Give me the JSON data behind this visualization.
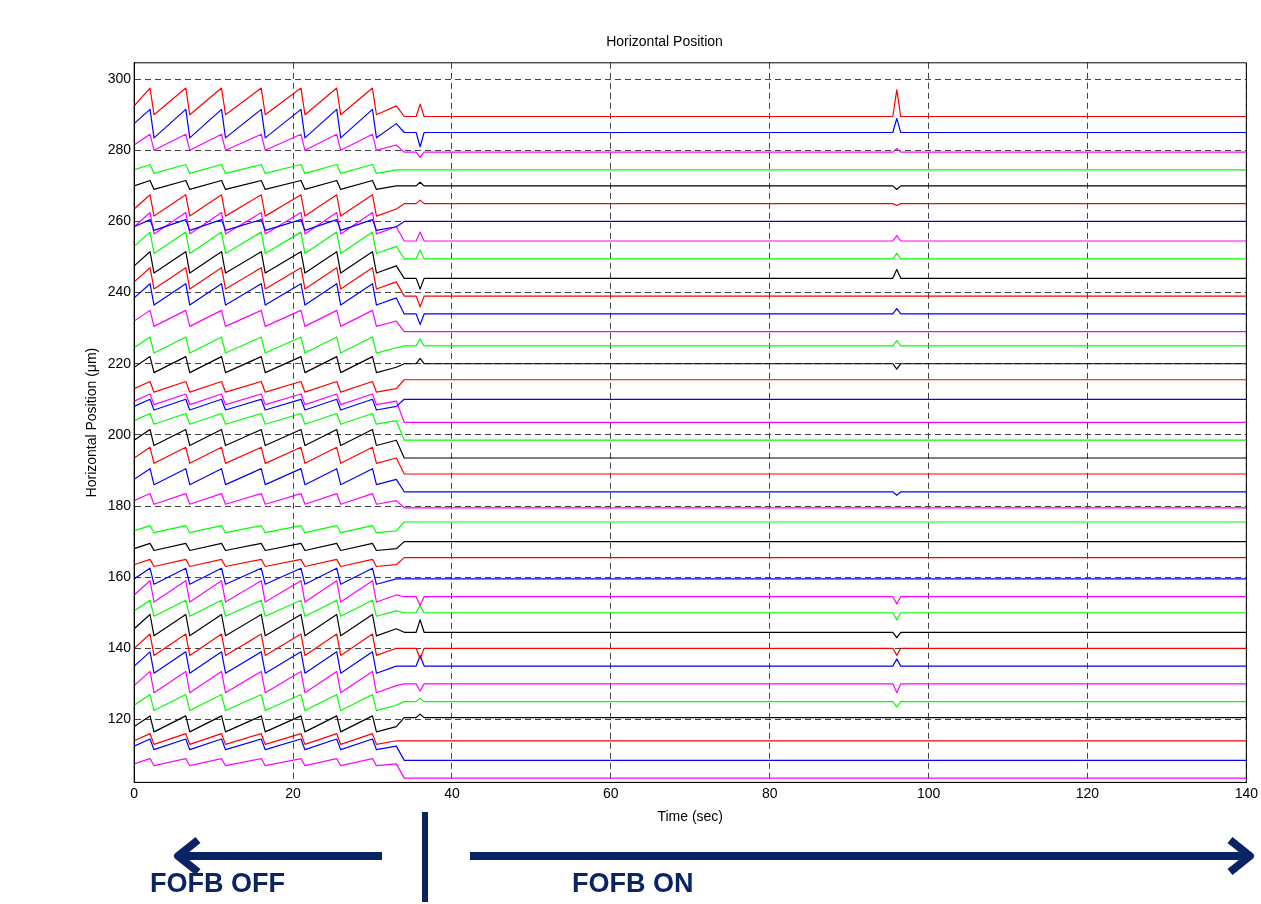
{
  "chart_data": {
    "type": "line",
    "title": "Horizontal Position",
    "xlabel": "Time (sec)",
    "ylabel": "Horizontal Position (μm)",
    "x": [
      0,
      2,
      2.5,
      6.5,
      7,
      11,
      11.5,
      16,
      16.5,
      21,
      21.5,
      25.5,
      26,
      30,
      30.5,
      33,
      34,
      35.5,
      36,
      36.5,
      60,
      95.5,
      96,
      96.5,
      140
    ],
    "xlim": [
      0,
      140
    ],
    "xticks": [
      0,
      20,
      40,
      60,
      80,
      100,
      120,
      140
    ],
    "ylim": [
      102.3,
      304.6
    ],
    "yticks": [
      120,
      140,
      160,
      180,
      200,
      220,
      240,
      260,
      280,
      300
    ],
    "grid": true,
    "legend": false,
    "marker": "none",
    "line_style": "solid",
    "annotations": [
      "FOFB OFF",
      "FOFB ON"
    ],
    "series": [
      {
        "color": "#ff0000",
        "values": [
          292.5,
          297.5,
          290,
          297.5,
          290,
          297.5,
          290,
          297.5,
          290,
          297.5,
          290,
          297.5,
          290,
          297.5,
          290,
          292.5,
          289.5,
          289.5,
          293,
          289.5,
          289.5,
          289.5,
          297,
          289.5,
          289.5
        ]
      },
      {
        "color": "#0000ff",
        "values": [
          287.5,
          291.5,
          283.5,
          291.5,
          283.5,
          291.5,
          283.5,
          291.5,
          283.5,
          291.5,
          283.5,
          291.5,
          283.5,
          291.5,
          283.5,
          287.5,
          285,
          285,
          281,
          285,
          285,
          285,
          289,
          285,
          285
        ]
      },
      {
        "color": "#ff00ff",
        "values": [
          281.5,
          284.5,
          280,
          284.5,
          280,
          284.5,
          280,
          284.5,
          280,
          284.5,
          280,
          284.5,
          280,
          284.5,
          280,
          281.5,
          279.5,
          279.5,
          278,
          279.5,
          279.5,
          279.5,
          280.5,
          279.5,
          279.5
        ]
      },
      {
        "color": "#00ff00",
        "values": [
          274.5,
          276,
          273.5,
          276,
          273.5,
          276,
          273.5,
          276,
          273.5,
          276,
          273.5,
          276,
          273.5,
          276,
          273.5,
          274.5,
          274.5,
          274.5,
          274.5,
          274.5,
          274.5,
          274.5,
          274.5,
          274.5,
          274.5
        ]
      },
      {
        "color": "#000000",
        "values": [
          270,
          271.5,
          269,
          271.5,
          269,
          271.5,
          269,
          271.5,
          269,
          271.5,
          269,
          271.5,
          269,
          271.5,
          269,
          270,
          270,
          270,
          271,
          270,
          270,
          270,
          269,
          270,
          270
        ]
      },
      {
        "color": "#ff0000",
        "values": [
          263.5,
          267.5,
          261.5,
          267.5,
          261.5,
          267.5,
          261.5,
          267.5,
          261.5,
          267.5,
          261.5,
          267.5,
          261.5,
          267.5,
          261.5,
          263.5,
          265,
          265,
          266,
          265,
          265,
          265,
          264.5,
          265,
          265
        ]
      },
      {
        "color": "#0000ff",
        "values": [
          258.5,
          260.5,
          257.5,
          260.5,
          257.5,
          260.5,
          257.5,
          260.5,
          257.5,
          260.5,
          257.5,
          260.5,
          257.5,
          260.5,
          257.5,
          258.5,
          260,
          260,
          260,
          260,
          260,
          260,
          260,
          260,
          260
        ]
      },
      {
        "color": "#ff00ff",
        "values": [
          258.5,
          262.5,
          256.5,
          262.5,
          256.5,
          262.5,
          256.5,
          262.5,
          256.5,
          262.5,
          256.5,
          262.5,
          256.5,
          262.5,
          256.5,
          258.5,
          254.5,
          254.5,
          257,
          254.5,
          254.5,
          254.5,
          256,
          254.5,
          254.5
        ]
      },
      {
        "color": "#00ff00",
        "values": [
          253,
          257,
          251,
          257,
          251,
          257,
          251,
          257,
          251,
          257,
          251,
          257,
          251,
          257,
          251,
          253,
          249.5,
          249.5,
          252,
          249.5,
          249.5,
          249.5,
          251,
          249.5,
          249.5
        ]
      },
      {
        "color": "#000000",
        "values": [
          247.5,
          251.5,
          245.5,
          251.5,
          245.5,
          251.5,
          245.5,
          251.5,
          245.5,
          251.5,
          245.5,
          251.5,
          245.5,
          251.5,
          245.5,
          247.5,
          244,
          244,
          241,
          244,
          244,
          244,
          246.5,
          244,
          244
        ]
      },
      {
        "color": "#ff0000",
        "values": [
          243,
          247,
          241,
          247,
          241,
          247,
          241,
          247,
          241,
          247,
          241,
          247,
          241,
          247,
          241,
          243,
          239,
          239,
          236,
          239,
          239,
          239,
          239,
          239,
          239
        ]
      },
      {
        "color": "#0000ff",
        "values": [
          238.5,
          242.5,
          236.5,
          242.5,
          236.5,
          242.5,
          236.5,
          242.5,
          236.5,
          242.5,
          236.5,
          242.5,
          236.5,
          242.5,
          236.5,
          238.5,
          234,
          234,
          231,
          234,
          234,
          234,
          235.5,
          234,
          234
        ]
      },
      {
        "color": "#ff00ff",
        "values": [
          232,
          235,
          230.5,
          235,
          230.5,
          235,
          230.5,
          235,
          230.5,
          235,
          230.5,
          235,
          230.5,
          235,
          230.5,
          232,
          229,
          229,
          229,
          229,
          229,
          229,
          229,
          229,
          229
        ]
      },
      {
        "color": "#00ff00",
        "values": [
          224.5,
          227.5,
          223,
          227.5,
          223,
          227.5,
          223,
          227.5,
          223,
          227.5,
          223,
          227.5,
          223,
          227.5,
          223,
          224.5,
          225,
          225,
          227,
          225,
          225,
          225,
          226.5,
          225,
          225
        ]
      },
      {
        "color": "#000000",
        "values": [
          219,
          222,
          217.5,
          222,
          217.5,
          222,
          217.5,
          222,
          217.5,
          222,
          217.5,
          222,
          217.5,
          222,
          217.5,
          219,
          220,
          220,
          221.5,
          220,
          220,
          220,
          218.5,
          220,
          220
        ]
      },
      {
        "color": "#ff0000",
        "values": [
          213,
          215,
          212,
          215,
          212,
          215,
          212,
          215,
          212,
          215,
          212,
          215,
          212,
          215,
          212,
          213,
          215.5,
          215.5,
          215.5,
          215.5,
          215.5,
          215.5,
          215.5,
          215.5,
          215.5
        ]
      },
      {
        "color": "#0000ff",
        "values": [
          208,
          210,
          207,
          210,
          207,
          210,
          207,
          210,
          207,
          210,
          207,
          210,
          207,
          210,
          207,
          208,
          210,
          210,
          210,
          210,
          210,
          210,
          210,
          210,
          210
        ]
      },
      {
        "color": "#ff00ff",
        "values": [
          209.5,
          211.5,
          208.5,
          211.5,
          208.5,
          211.5,
          208.5,
          211.5,
          208.5,
          211.5,
          208.5,
          211.5,
          208.5,
          211.5,
          208.5,
          209.5,
          203.5,
          203.5,
          203.5,
          203.5,
          203.5,
          203.5,
          203.5,
          203.5,
          203.5
        ]
      },
      {
        "color": "#00ff00",
        "values": [
          204,
          206,
          203,
          206,
          203,
          206,
          203,
          206,
          203,
          206,
          203,
          206,
          203,
          206,
          203,
          204,
          198.5,
          198.5,
          198.5,
          198.5,
          198.5,
          198.5,
          198.5,
          198.5,
          198.5
        ]
      },
      {
        "color": "#000000",
        "values": [
          198.5,
          201.5,
          197,
          201.5,
          197,
          201.5,
          197,
          201.5,
          197,
          201.5,
          197,
          201.5,
          197,
          201.5,
          197,
          198.5,
          193.5,
          193.5,
          193.5,
          193.5,
          193.5,
          193.5,
          193.5,
          193.5,
          193.5
        ]
      },
      {
        "color": "#ff0000",
        "values": [
          193.5,
          196.5,
          192,
          196.5,
          192,
          196.5,
          192,
          196.5,
          192,
          196.5,
          192,
          196.5,
          192,
          196.5,
          192,
          193.5,
          189,
          189,
          189,
          189,
          189,
          189,
          189,
          189,
          189
        ]
      },
      {
        "color": "#0000ff",
        "values": [
          187.5,
          190.5,
          186,
          190.5,
          186,
          190.5,
          186,
          190.5,
          186,
          190.5,
          186,
          190.5,
          186,
          190.5,
          186,
          187.5,
          184,
          184,
          184,
          184,
          184,
          184,
          183,
          184,
          184
        ]
      },
      {
        "color": "#ff00ff",
        "values": [
          181.5,
          183.5,
          180.5,
          183.5,
          180.5,
          183.5,
          180.5,
          183.5,
          180.5,
          183.5,
          180.5,
          183.5,
          180.5,
          183.5,
          180.5,
          181.5,
          179.5,
          179.5,
          179.5,
          179.5,
          179.5,
          179.5,
          179.5,
          179.5,
          179.5
        ]
      },
      {
        "color": "#00ff00",
        "values": [
          173,
          174.5,
          172.5,
          174.5,
          172.5,
          174.5,
          172.5,
          174.5,
          172.5,
          174.5,
          172.5,
          174.5,
          172.5,
          174.5,
          172.5,
          173,
          175.5,
          175.5,
          175.5,
          175.5,
          175.5,
          175.5,
          175.5,
          175.5,
          175.5
        ]
      },
      {
        "color": "#000000",
        "values": [
          168,
          169.5,
          167.5,
          169.5,
          167.5,
          169.5,
          167.5,
          169.5,
          167.5,
          169.5,
          167.5,
          169.5,
          167.5,
          169.5,
          167.5,
          168,
          170,
          170,
          170,
          170,
          170,
          170,
          170,
          170,
          170
        ]
      },
      {
        "color": "#ff0000",
        "values": [
          163.5,
          165,
          163,
          165,
          163,
          165,
          163,
          165,
          163,
          165,
          163,
          165,
          163,
          165,
          163,
          163.5,
          165.5,
          165.5,
          165.5,
          165.5,
          165.5,
          165.5,
          165.5,
          165.5,
          165.5
        ]
      },
      {
        "color": "#0000ff",
        "values": [
          159.5,
          162.5,
          158,
          162.5,
          158,
          162.5,
          158,
          162.5,
          158,
          162.5,
          158,
          162.5,
          158,
          162.5,
          158,
          159.5,
          159.5,
          159.5,
          159.5,
          159.5,
          159.5,
          159.5,
          159.5,
          159.5,
          159.5
        ]
      },
      {
        "color": "#ff00ff",
        "values": [
          155,
          159,
          153,
          159,
          153,
          159,
          153,
          159,
          153,
          159,
          153,
          159,
          153,
          159,
          153,
          155,
          154.5,
          154.5,
          152,
          154.5,
          154.5,
          154.5,
          152.5,
          154.5,
          154.5
        ]
      },
      {
        "color": "#00ff00",
        "values": [
          150.5,
          153.5,
          149,
          153.5,
          149,
          153.5,
          149,
          153.5,
          149,
          153.5,
          149,
          153.5,
          149,
          153.5,
          149,
          150.5,
          150,
          150,
          152,
          150,
          150,
          150,
          148,
          150,
          150
        ]
      },
      {
        "color": "#000000",
        "values": [
          145.5,
          149.5,
          143.5,
          149.5,
          143.5,
          149.5,
          143.5,
          149.5,
          143.5,
          149.5,
          143.5,
          149.5,
          143.5,
          149.5,
          143.5,
          145.5,
          144.5,
          144.5,
          148,
          144.5,
          144.5,
          144.5,
          143,
          144.5,
          144.5
        ]
      },
      {
        "color": "#ff0000",
        "values": [
          140,
          144,
          138,
          144,
          138,
          144,
          138,
          144,
          138,
          144,
          138,
          144,
          138,
          144,
          138,
          140,
          140,
          140,
          137,
          140,
          140,
          140,
          138,
          140,
          140
        ]
      },
      {
        "color": "#0000ff",
        "values": [
          135,
          139,
          133,
          139,
          133,
          139,
          133,
          139,
          133,
          139,
          133,
          139,
          133,
          139,
          133,
          135,
          135,
          135,
          138,
          135,
          135,
          135,
          137,
          135,
          135
        ]
      },
      {
        "color": "#ff00ff",
        "values": [
          129.5,
          133.5,
          127.5,
          133.5,
          127.5,
          133.5,
          127.5,
          133.5,
          127.5,
          133.5,
          127.5,
          133.5,
          127.5,
          133.5,
          127.5,
          129.5,
          130,
          130,
          128,
          130,
          130,
          130,
          127.5,
          130,
          130
        ]
      },
      {
        "color": "#00ff00",
        "values": [
          124,
          127,
          122.5,
          127,
          122.5,
          127,
          122.5,
          127,
          122.5,
          127,
          122.5,
          127,
          122.5,
          127,
          122.5,
          124,
          125,
          125,
          126,
          125,
          125,
          125,
          123.5,
          125,
          125
        ]
      },
      {
        "color": "#000000",
        "values": [
          118,
          121,
          116.5,
          121,
          116.5,
          121,
          116.5,
          121,
          116.5,
          121,
          116.5,
          121,
          116.5,
          121,
          116.5,
          118,
          120.5,
          120.5,
          121.5,
          120.5,
          120.5,
          120.5,
          120.5,
          120.5,
          120.5
        ]
      },
      {
        "color": "#ff0000",
        "values": [
          114,
          116,
          113,
          116,
          113,
          116,
          113,
          116,
          113,
          116,
          113,
          116,
          113,
          116,
          113,
          114,
          114,
          114,
          114,
          114,
          114,
          114,
          114,
          114,
          114
        ]
      },
      {
        "color": "#0000ff",
        "values": [
          112.5,
          114.5,
          111.5,
          114.5,
          111.5,
          114.5,
          111.5,
          114.5,
          111.5,
          114.5,
          111.5,
          114.5,
          111.5,
          114.5,
          111.5,
          112.5,
          108.5,
          108.5,
          108.5,
          108.5,
          108.5,
          108.5,
          108.5,
          108.5,
          108.5
        ]
      },
      {
        "color": "#ff00ff",
        "values": [
          107.5,
          109,
          107,
          109,
          107,
          109,
          107,
          109,
          107,
          109,
          107,
          109,
          107,
          109,
          107,
          107.5,
          103.5,
          103.5,
          103.5,
          103.5,
          103.5,
          103.5,
          103.5,
          103.5,
          103.5
        ]
      }
    ]
  }
}
